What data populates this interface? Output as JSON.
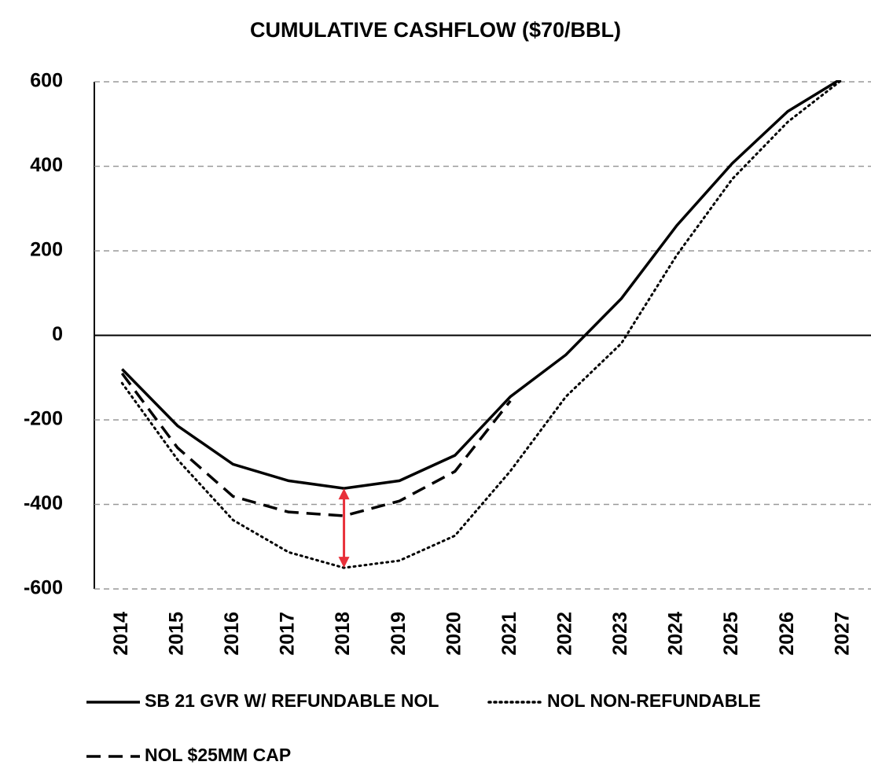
{
  "chart_data": {
    "type": "line",
    "title": "CUMULATIVE CASHFLOW ($70/BBL)",
    "categories": [
      "2014",
      "2015",
      "2016",
      "2017",
      "2018",
      "2019",
      "2020",
      "2021",
      "2022",
      "2023",
      "2024",
      "2025",
      "2026",
      "2027"
    ],
    "series": [
      {
        "name": "SB 21 GVR W/ REFUNDABLE NOL",
        "color": "#000000",
        "dash": "solid",
        "values": [
          -80,
          -214,
          -305,
          -344,
          -362,
          -344,
          -284,
          -145,
          -46,
          87,
          260,
          407,
          530,
          610
        ]
      },
      {
        "name": "NOL NON-REFUNDABLE",
        "color": "#000000",
        "dash": "dotted",
        "values": [
          -113,
          -294,
          -437,
          -513,
          -550,
          -533,
          -474,
          -321,
          -145,
          -19,
          190,
          370,
          505,
          607
        ]
      },
      {
        "name": "NOL $25MM CAP",
        "color": "#000000",
        "dash": "dashed",
        "values": [
          -90,
          -266,
          -381,
          -418,
          -427,
          -392,
          -322,
          -155,
          null,
          null,
          null,
          null,
          null,
          null
        ]
      }
    ],
    "ylim": [
      -600,
      600
    ],
    "yticks": [
      -600,
      -400,
      -200,
      0,
      200,
      400,
      600
    ],
    "grid": true,
    "legend": "bottom",
    "annotation_color": "#e8303a"
  }
}
